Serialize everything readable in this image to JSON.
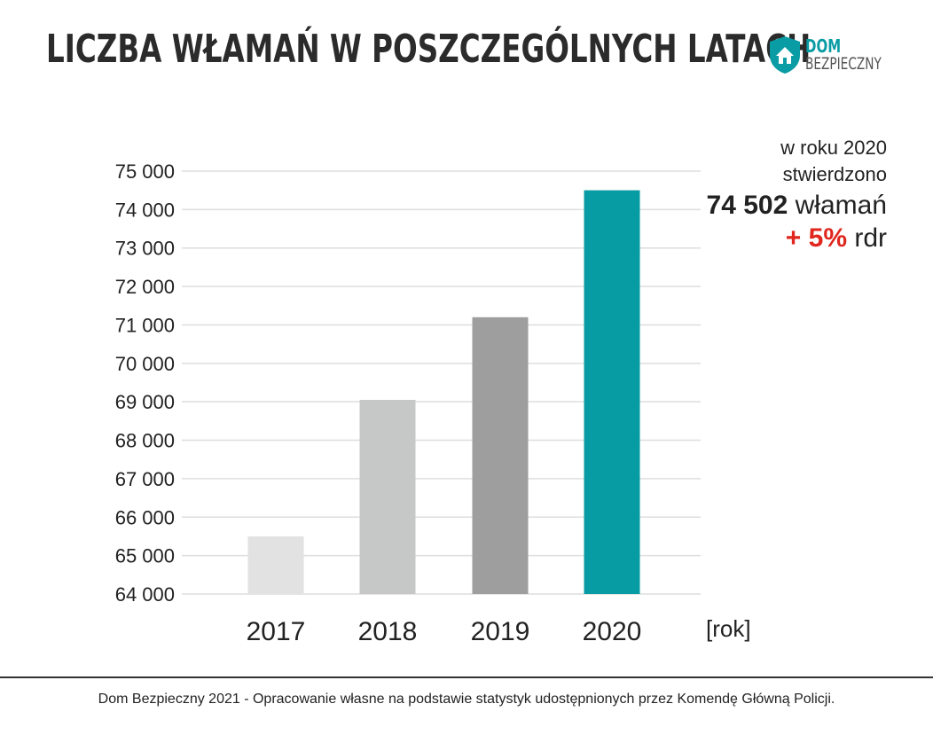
{
  "title": "LICZBA WŁAMAŃ W POSZCZEGÓLNYCH LATACH",
  "logo": {
    "line1": "DOM",
    "line2": "BEZPIECZNY",
    "icon": "shield-house-icon"
  },
  "annotation": {
    "line1": "w roku 2020",
    "line2": "stwierdzono",
    "value": "74 502",
    "value_suffix": " włamań",
    "change": "+ 5%",
    "change_suffix": " rdr"
  },
  "chart_data": {
    "type": "bar",
    "categories": [
      "2017",
      "2018",
      "2019",
      "2020"
    ],
    "values": [
      65500,
      69050,
      71200,
      74502
    ],
    "colors": [
      "#e2e2e2",
      "#c6c8c7",
      "#9d9e9d",
      "#079ca3"
    ],
    "ylim": [
      64000,
      75000
    ],
    "yticks": [
      64000,
      65000,
      66000,
      67000,
      68000,
      69000,
      70000,
      71000,
      72000,
      73000,
      74000,
      75000
    ],
    "ytick_labels": [
      "64 000",
      "65 000",
      "66 000",
      "67 000",
      "68 000",
      "69 000",
      "70 000",
      "71 000",
      "72 000",
      "73 000",
      "74 000",
      "75 000"
    ],
    "xlabel": "[rok]",
    "grid": true
  },
  "footer": "Dom Bezpieczny 2021 - Opracowanie własne na podstawie statystyk udostępnionych przez Komendę Główną Policji."
}
